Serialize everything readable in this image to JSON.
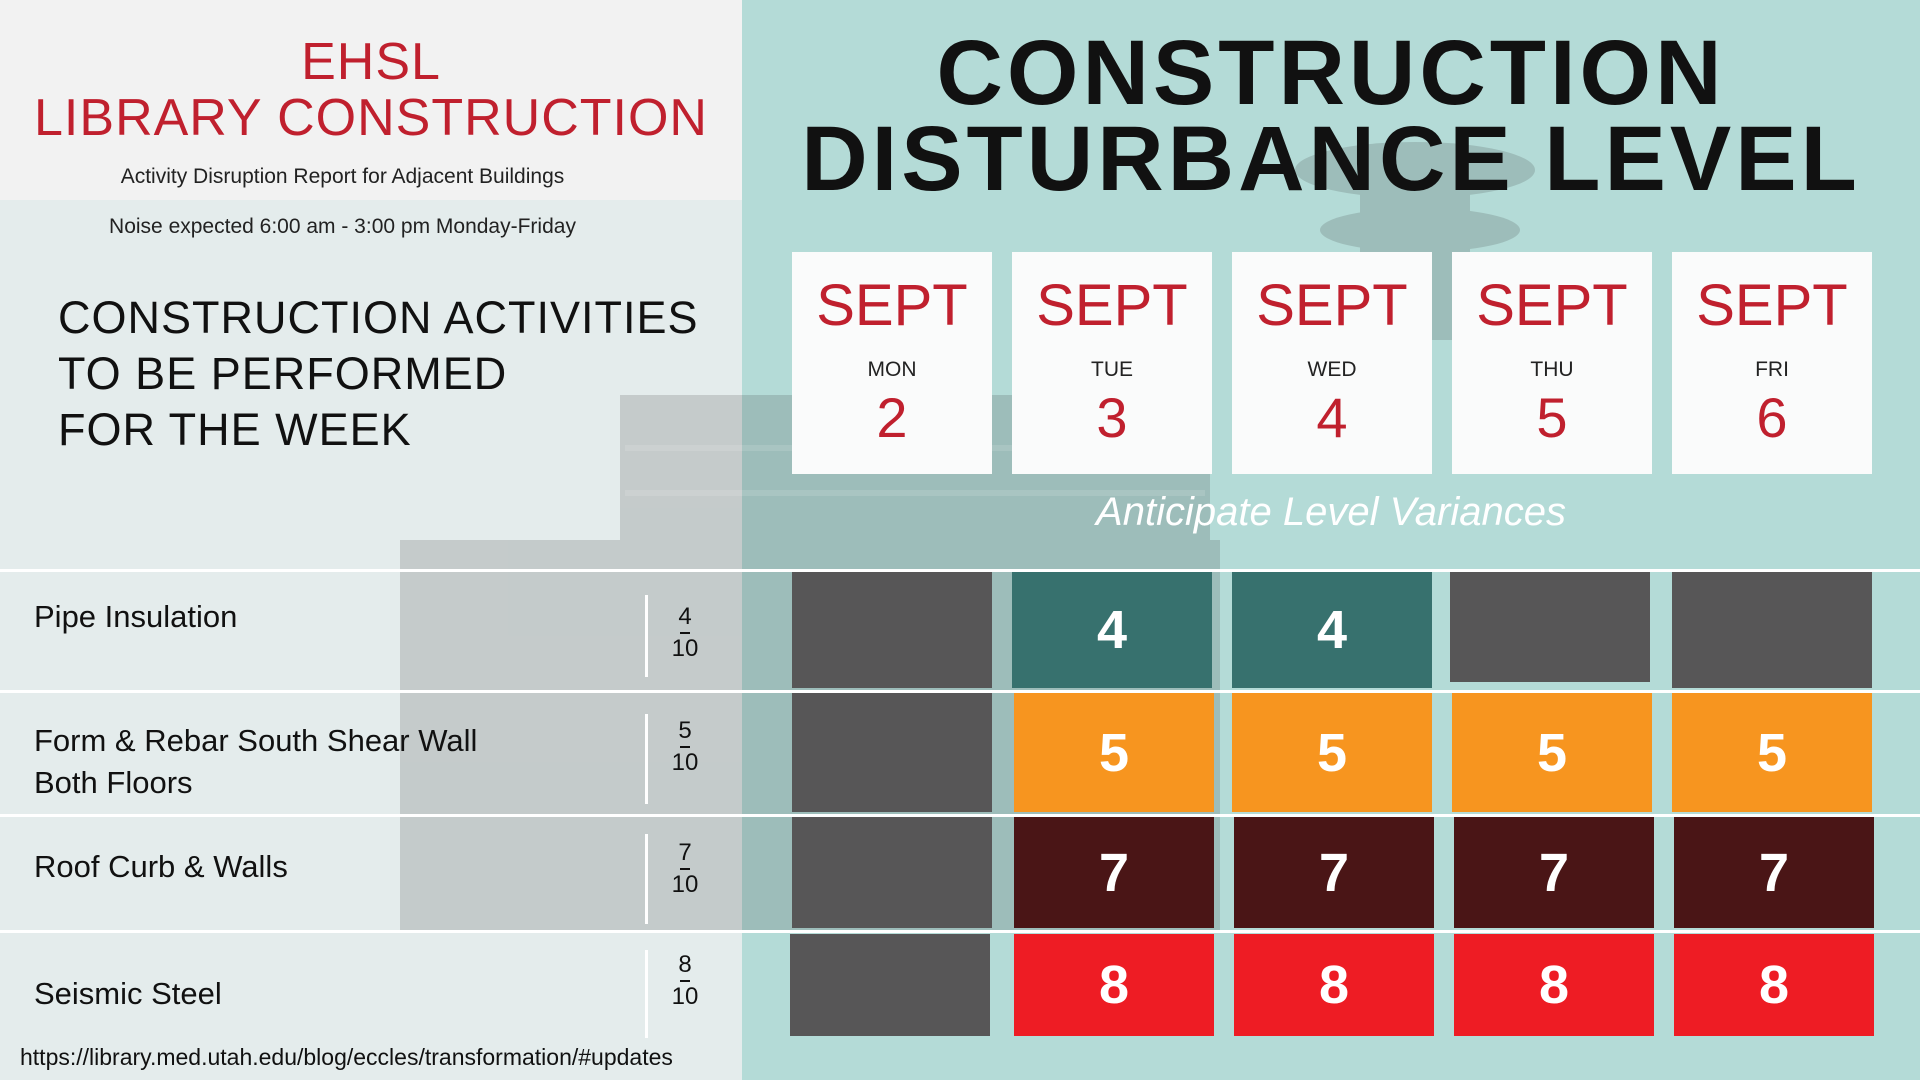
{
  "header": {
    "title_line1": "EHSL",
    "title_line2": "LIBRARY CONSTRUCTION",
    "subtitle": "Activity Disruption Report for Adjacent Buildings",
    "noise_note": "Noise expected 6:00 am - 3:00 pm Monday-Friday"
  },
  "activities_heading": {
    "line1": "CONSTRUCTION ACTIVITIES",
    "line2": "TO BE PERFORMED",
    "line3": "FOR THE WEEK"
  },
  "main_title": {
    "line1": "CONSTRUCTION",
    "line2": "DISTURBANCE LEVEL"
  },
  "days": [
    {
      "month": "SEPT",
      "dow": "MON",
      "num": "2"
    },
    {
      "month": "SEPT",
      "dow": "TUE",
      "num": "3"
    },
    {
      "month": "SEPT",
      "dow": "WED",
      "num": "4"
    },
    {
      "month": "SEPT",
      "dow": "THU",
      "num": "5"
    },
    {
      "month": "SEPT",
      "dow": "FRI",
      "num": "6"
    }
  ],
  "variances_note": "Anticipate Level Variances",
  "activities": [
    {
      "label_line1": "Pipe Insulation",
      "label_line2": "",
      "score": "4",
      "out_of": "10",
      "cells": [
        "",
        "4",
        "4",
        "",
        ""
      ]
    },
    {
      "label_line1": "Form & Rebar South Shear Wall",
      "label_line2": "Both Floors",
      "score": "5",
      "out_of": "10",
      "cells": [
        "",
        "5",
        "5",
        "5",
        "5"
      ]
    },
    {
      "label_line1": "Roof Curb & Walls",
      "label_line2": "",
      "score": "7",
      "out_of": "10",
      "cells": [
        "",
        "7",
        "7",
        "7",
        "7"
      ]
    },
    {
      "label_line1": "Seismic Steel",
      "label_line2": "",
      "score": "8",
      "out_of": "10",
      "cells": [
        "",
        "8",
        "8",
        "8",
        "8"
      ]
    }
  ],
  "colors": {
    "accent_red": "#c0202e",
    "inactive": "#575657",
    "level_4": "#37716e",
    "level_5": "#f7951f",
    "level_7": "#4a1516",
    "level_8": "#ee1c24"
  },
  "footer": {
    "url": "https://library.med.utah.edu/blog/eccles/transformation/#updates"
  }
}
